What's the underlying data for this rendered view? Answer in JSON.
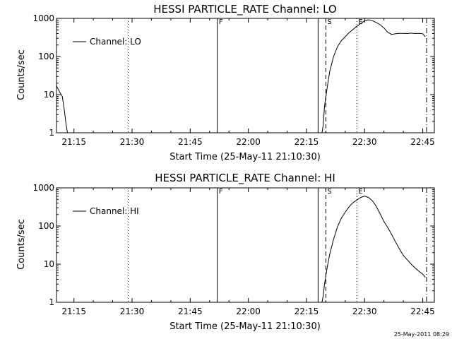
{
  "chart_data": [
    {
      "type": "line",
      "title": "HESSI PARTICLE_RATE Channel: LO",
      "xlabel": "Start Time (25-May-11 21:10:30)",
      "ylabel": "Counts/sec",
      "y_scale": "log",
      "ylim": [
        1,
        1000
      ],
      "xlim": [
        "21:10:30",
        "22:48:00"
      ],
      "grid": false,
      "legend_position": "top-left",
      "x_ticks": [
        "21:15",
        "21:30",
        "21:45",
        "22:00",
        "22:15",
        "22:30",
        "22:45"
      ],
      "y_ticks": [
        "1",
        "10",
        "100",
        "1000"
      ],
      "markers": [
        {
          "label": "",
          "x": "21:29",
          "style": "dotted"
        },
        {
          "label": "F",
          "x": "21:52",
          "style": "solid"
        },
        {
          "label": "",
          "x": "22:18",
          "style": "solid"
        },
        {
          "label": "S",
          "x": "22:20",
          "style": "dashed"
        },
        {
          "label": "E",
          "x": "22:28",
          "style": "dotted"
        },
        {
          "label": "",
          "x": "22:46",
          "style": "dashdot"
        }
      ],
      "series": [
        {
          "name": "Channel: LO",
          "points": [
            [
              "21:10:30",
              17
            ],
            [
              "21:11:15",
              12
            ],
            [
              "21:12:00",
              9
            ],
            [
              "21:12:30",
              4
            ],
            [
              "21:13:00",
              1.6
            ],
            [
              "21:13:20",
              1
            ],
            [
              "22:19:00",
              1
            ],
            [
              "22:19:20",
              1.6
            ],
            [
              "22:19:40",
              5
            ],
            [
              "22:20:20",
              15
            ],
            [
              "22:21:00",
              40
            ],
            [
              "22:22:00",
              100
            ],
            [
              "22:23:00",
              180
            ],
            [
              "22:24:00",
              260
            ],
            [
              "22:26:00",
              420
            ],
            [
              "22:28:00",
              620
            ],
            [
              "22:30:00",
              860
            ],
            [
              "22:31:00",
              920
            ],
            [
              "22:32:00",
              870
            ],
            [
              "22:33:00",
              780
            ],
            [
              "22:34:00",
              680
            ],
            [
              "22:35:00",
              560
            ],
            [
              "22:36:00",
              430
            ],
            [
              "22:37:00",
              380
            ],
            [
              "22:38:00",
              395
            ],
            [
              "22:39:00",
              405
            ],
            [
              "22:40:00",
              405
            ],
            [
              "22:41:00",
              400
            ],
            [
              "22:42:00",
              410
            ],
            [
              "22:43:00",
              400
            ],
            [
              "22:44:00",
              405
            ],
            [
              "22:45:00",
              395
            ],
            [
              "22:45:40",
              330
            ]
          ]
        }
      ]
    },
    {
      "type": "line",
      "title": "HESSI PARTICLE_RATE Channel: HI",
      "xlabel": "Start Time (25-May-11 21:10:30)",
      "ylabel": "Counts/sec",
      "y_scale": "log",
      "ylim": [
        1,
        1000
      ],
      "xlim": [
        "21:10:30",
        "22:48:00"
      ],
      "grid": false,
      "legend_position": "top-left",
      "x_ticks": [
        "21:15",
        "21:30",
        "21:45",
        "22:00",
        "22:15",
        "22:30",
        "22:45"
      ],
      "y_ticks": [
        "1",
        "10",
        "100",
        "1000"
      ],
      "markers": [
        {
          "label": "",
          "x": "21:29",
          "style": "dotted"
        },
        {
          "label": "F",
          "x": "21:52",
          "style": "solid"
        },
        {
          "label": "",
          "x": "22:18",
          "style": "solid"
        },
        {
          "label": "S",
          "x": "22:20",
          "style": "dashed"
        },
        {
          "label": "E",
          "x": "22:28",
          "style": "dotted"
        },
        {
          "label": "",
          "x": "22:46",
          "style": "dashdot"
        }
      ],
      "series": [
        {
          "name": "Channel: HI",
          "points": [
            [
              "22:19:00",
              1
            ],
            [
              "22:19:20",
              1.5
            ],
            [
              "22:19:40",
              3
            ],
            [
              "22:20:20",
              8
            ],
            [
              "22:21:00",
              18
            ],
            [
              "22:22:00",
              45
            ],
            [
              "22:23:00",
              95
            ],
            [
              "22:24:00",
              160
            ],
            [
              "22:25:00",
              230
            ],
            [
              "22:26:00",
              320
            ],
            [
              "22:27:00",
              410
            ],
            [
              "22:28:00",
              480
            ],
            [
              "22:29:00",
              560
            ],
            [
              "22:30:00",
              610
            ],
            [
              "22:31:00",
              560
            ],
            [
              "22:32:00",
              460
            ],
            [
              "22:33:00",
              330
            ],
            [
              "22:34:00",
              210
            ],
            [
              "22:35:00",
              130
            ],
            [
              "22:36:00",
              90
            ],
            [
              "22:37:00",
              60
            ],
            [
              "22:38:00",
              38
            ],
            [
              "22:39:00",
              25
            ],
            [
              "22:40:00",
              17
            ],
            [
              "22:41:00",
              13
            ],
            [
              "22:42:00",
              10
            ],
            [
              "22:43:00",
              8
            ],
            [
              "22:44:00",
              6.5
            ],
            [
              "22:45:00",
              5.5
            ],
            [
              "22:45:40",
              4.5
            ]
          ]
        }
      ]
    }
  ],
  "footer": {
    "timestamp": "25-May-2011 08:29"
  }
}
